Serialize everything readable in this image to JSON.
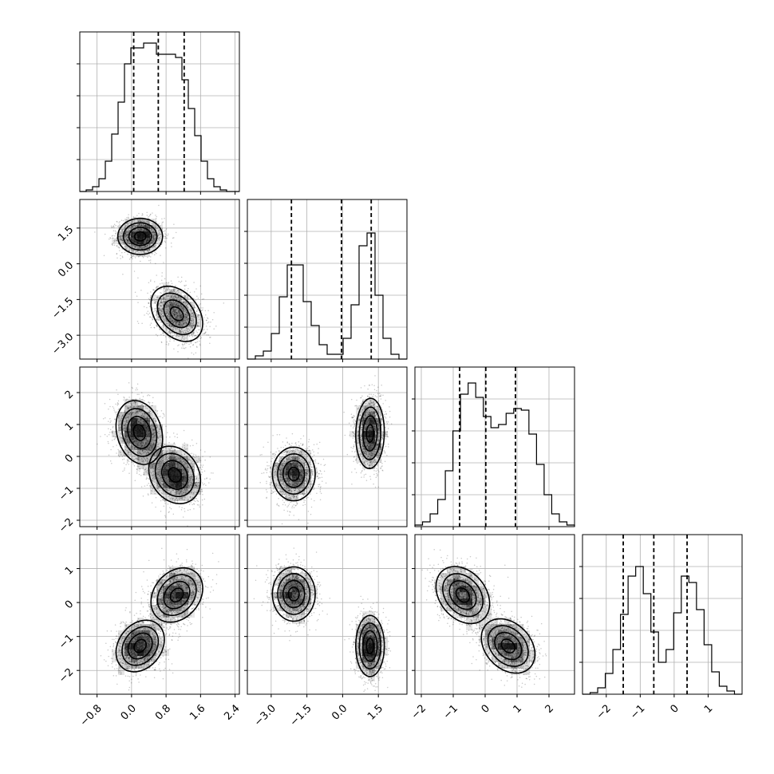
{
  "chart_data": {
    "type": "corner",
    "parameters": [
      {
        "id": "p0",
        "range": [
          -1.2,
          2.5
        ],
        "ticks": [
          -0.8,
          0.0,
          0.8,
          1.6,
          2.4
        ],
        "tick_labels": [
          "−0.8",
          "0.0",
          "0.8",
          "1.6",
          "2.4"
        ],
        "quantiles": [
          0.05,
          0.62,
          1.22
        ],
        "hist_bins": [
          0.0,
          0.01,
          0.03,
          0.08,
          0.19,
          0.36,
          0.56,
          0.8,
          0.9,
          0.9,
          0.93,
          0.93,
          0.86,
          0.86,
          0.86,
          0.84,
          0.7,
          0.52,
          0.35,
          0.19,
          0.08,
          0.03,
          0.01,
          0.0,
          0.0
        ]
      },
      {
        "id": "p1",
        "range": [
          -4.0,
          2.7
        ],
        "ticks": [
          -3.0,
          -1.5,
          0.0,
          1.5
        ],
        "tick_labels": [
          "−3.0",
          "−1.5",
          "0.0",
          "1.5"
        ],
        "quantiles": [
          -2.15,
          -0.05,
          1.2
        ],
        "hist_bins": [
          0.0,
          0.02,
          0.05,
          0.16,
          0.39,
          0.59,
          0.59,
          0.36,
          0.21,
          0.09,
          0.03,
          0.03,
          0.13,
          0.34,
          0.71,
          0.79,
          0.4,
          0.13,
          0.03,
          0.0
        ]
      },
      {
        "id": "p2",
        "range": [
          -2.2,
          2.8
        ],
        "ticks": [
          -2,
          -1,
          0,
          1,
          2
        ],
        "tick_labels": [
          "−2",
          "−1",
          "0",
          "1",
          "2"
        ],
        "quantiles": [
          -0.8,
          0.02,
          0.95
        ],
        "hist_bins": [
          0.01,
          0.03,
          0.08,
          0.17,
          0.35,
          0.6,
          0.83,
          0.9,
          0.81,
          0.69,
          0.62,
          0.64,
          0.71,
          0.74,
          0.73,
          0.58,
          0.39,
          0.2,
          0.08,
          0.03,
          0.01
        ]
      },
      {
        "id": "p3",
        "range": [
          -2.7,
          2.0
        ],
        "ticks": [
          -2,
          -1,
          0,
          1
        ],
        "tick_labels": [
          "−2",
          "−1",
          "0",
          "1"
        ],
        "quantiles": [
          -1.5,
          -0.6,
          0.38
        ],
        "hist_bins": [
          0.0,
          0.01,
          0.04,
          0.13,
          0.28,
          0.5,
          0.74,
          0.8,
          0.63,
          0.39,
          0.2,
          0.28,
          0.51,
          0.74,
          0.7,
          0.53,
          0.31,
          0.14,
          0.05,
          0.02,
          0.0
        ]
      }
    ],
    "pairs": [
      {
        "x": "p0",
        "y": "p1",
        "clusters": [
          {
            "mx": 0.2,
            "my": 1.15,
            "sx": 0.26,
            "sy": 0.38,
            "rho": 0.0,
            "n": 1500
          },
          {
            "mx": 1.05,
            "my": -2.1,
            "sx": 0.3,
            "sy": 0.58,
            "rho": -0.35,
            "n": 1500
          }
        ]
      },
      {
        "x": "p0",
        "y": "p2",
        "clusters": [
          {
            "mx": 0.18,
            "my": 0.75,
            "sx": 0.27,
            "sy": 0.5,
            "rho": -0.2,
            "n": 1500
          },
          {
            "mx": 1.0,
            "my": -0.58,
            "sx": 0.3,
            "sy": 0.45,
            "rho": -0.2,
            "n": 1500
          }
        ]
      },
      {
        "x": "p0",
        "y": "p3",
        "clusters": [
          {
            "mx": 0.2,
            "my": -1.28,
            "sx": 0.28,
            "sy": 0.38,
            "rho": 0.25,
            "n": 1500
          },
          {
            "mx": 1.05,
            "my": 0.22,
            "sx": 0.3,
            "sy": 0.4,
            "rho": 0.25,
            "n": 1500
          }
        ]
      },
      {
        "x": "p1",
        "y": "p2",
        "clusters": [
          {
            "mx": -2.05,
            "my": -0.55,
            "sx": 0.45,
            "sy": 0.42,
            "rho": 0.0,
            "n": 1500
          },
          {
            "mx": 1.15,
            "my": 0.72,
            "sx": 0.3,
            "sy": 0.55,
            "rho": 0.05,
            "n": 1500
          }
        ]
      },
      {
        "x": "p1",
        "y": "p3",
        "clusters": [
          {
            "mx": -2.05,
            "my": 0.25,
            "sx": 0.45,
            "sy": 0.4,
            "rho": 0.0,
            "n": 1500
          },
          {
            "mx": 1.15,
            "my": -1.28,
            "sx": 0.3,
            "sy": 0.45,
            "rho": 0.0,
            "n": 1500
          }
        ]
      },
      {
        "x": "p2",
        "y": "p3",
        "clusters": [
          {
            "mx": -0.7,
            "my": 0.22,
            "sx": 0.42,
            "sy": 0.42,
            "rho": -0.3,
            "n": 1500
          },
          {
            "mx": 0.72,
            "my": -1.28,
            "sx": 0.42,
            "sy": 0.4,
            "rho": -0.3,
            "n": 1500
          }
        ]
      }
    ],
    "contour_levels_sigma": [
      0.5,
      1.0,
      1.5,
      2.0
    ],
    "grid": true,
    "colors": {
      "scatter": "#000000",
      "contour": "#000000",
      "density_dark": "#000000",
      "grid": "#b0b0b0"
    }
  }
}
